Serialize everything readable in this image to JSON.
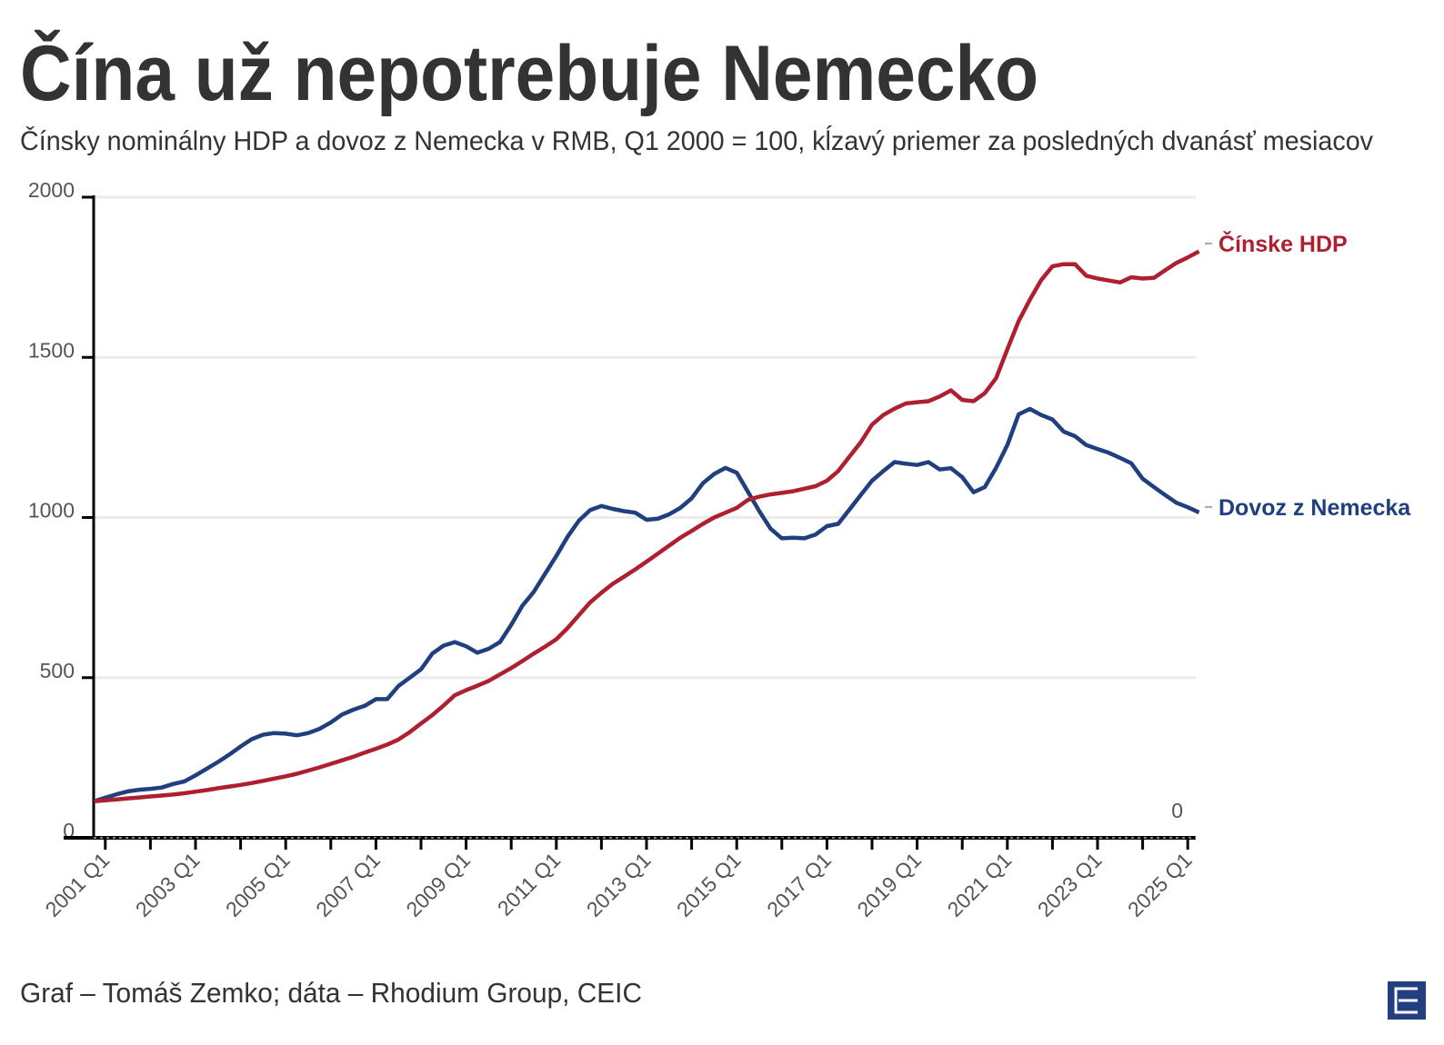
{
  "title": "Čína už nepotrebuje Nemecko",
  "subtitle": "Čínsky nominálny HDP a dovoz z Nemecka v RMB, Q1 2000 = 100, kĺzavý priemer za posledných dvanásť mesiacov",
  "footer": "Graf – Tomáš Zemko; dáta – Rhodium Group, CEIC",
  "logo": {
    "icon": "publisher-logo-e-icon",
    "color": "#223f80"
  },
  "chart_data": {
    "type": "line",
    "title": "Čína už nepotrebuje Nemecko",
    "xlabel": "",
    "ylabel": "",
    "ylim": [
      0,
      2000
    ],
    "y_ticks": [
      "0",
      "500",
      "1000",
      "1500",
      "2000"
    ],
    "y_tick_values": [
      0,
      500,
      1000,
      1500,
      2000
    ],
    "right_zero_label": "0",
    "x_start_year": 2000,
    "x_start_quarter": 4,
    "x_tick_labels": [
      "2001 Q1",
      "2003 Q1",
      "2005 Q1",
      "2007 Q1",
      "2009 Q1",
      "2011 Q1",
      "2013 Q1",
      "2015 Q1",
      "2017 Q1",
      "2019 Q1",
      "2021 Q1",
      "2023 Q1",
      "2025 Q1"
    ],
    "grid": true,
    "series": [
      {
        "name": "Čínske HDP",
        "color": "#ae1f2f",
        "values": [
          114,
          117,
          120,
          123,
          126,
          129,
          132,
          135,
          139,
          144,
          149,
          155,
          160,
          165,
          171,
          178,
          185,
          192,
          200,
          210,
          220,
          231,
          242,
          253,
          266,
          278,
          291,
          307,
          330,
          357,
          383,
          413,
          445,
          461,
          475,
          490,
          510,
          530,
          552,
          575,
          597,
          620,
          655,
          695,
          735,
          765,
          793,
          815,
          838,
          862,
          887,
          912,
          937,
          958,
          980,
          1000,
          1015,
          1030,
          1055,
          1065,
          1072,
          1077,
          1082,
          1090,
          1098,
          1115,
          1145,
          1190,
          1235,
          1290,
          1320,
          1340,
          1356,
          1360,
          1363,
          1378,
          1397,
          1367,
          1363,
          1388,
          1435,
          1525,
          1613,
          1680,
          1741,
          1784,
          1791,
          1791,
          1755,
          1746,
          1740,
          1734,
          1750,
          1746,
          1748,
          1772,
          1795,
          1812,
          1831
        ]
      },
      {
        "name": "Dovoz z Nemecka",
        "color": "#1f3f7f",
        "values": [
          114,
          125,
          136,
          145,
          150,
          153,
          157,
          168,
          176,
          195,
          216,
          237,
          260,
          285,
          308,
          322,
          327,
          325,
          320,
          327,
          340,
          360,
          385,
          400,
          412,
          433,
          433,
          474,
          500,
          526,
          575,
          600,
          611,
          598,
          578,
          590,
          611,
          665,
          725,
          768,
          824,
          880,
          940,
          990,
          1023,
          1036,
          1027,
          1020,
          1015,
          993,
          996,
          1010,
          1030,
          1060,
          1107,
          1136,
          1155,
          1140,
          1080,
          1020,
          965,
          935,
          937,
          935,
          947,
          973,
          980,
          1025,
          1070,
          1115,
          1145,
          1173,
          1168,
          1164,
          1173,
          1150,
          1154,
          1126,
          1079,
          1095,
          1155,
          1226,
          1322,
          1339,
          1320,
          1306,
          1268,
          1254,
          1226,
          1214,
          1202,
          1186,
          1169,
          1121,
          1095,
          1070,
          1046,
          1032,
          1016
        ]
      }
    ]
  }
}
